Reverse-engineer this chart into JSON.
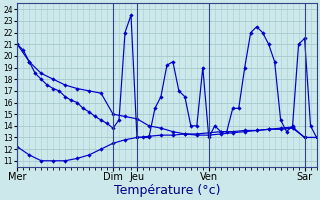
{
  "background_color": "#cce8ea",
  "grid_color": "#aaccd0",
  "line_color": "#0000cc",
  "xlabel": "Température (°c)",
  "xlabel_fontsize": 9,
  "yticks": [
    11,
    12,
    13,
    14,
    15,
    16,
    17,
    18,
    19,
    20,
    21,
    22,
    23,
    24
  ],
  "ylim": [
    10.5,
    24.5
  ],
  "xlim": [
    0,
    100
  ],
  "day_labels": [
    "Mer",
    "Dim",
    "Jeu",
    "Ven",
    "Sar"
  ],
  "day_positions": [
    0,
    32,
    40,
    64,
    96
  ],
  "series_main_x": [
    0,
    2,
    4,
    6,
    8,
    10,
    12,
    14,
    16,
    18,
    20,
    22,
    24,
    26,
    28,
    30,
    32,
    34,
    36,
    38,
    40,
    42,
    44,
    46,
    48,
    50,
    52,
    54,
    56,
    58,
    60,
    62,
    64,
    66,
    68,
    70,
    72,
    74,
    76,
    78,
    80,
    82,
    84,
    86,
    88,
    90,
    92,
    94,
    96,
    98,
    100
  ],
  "series_main_y": [
    21.0,
    20.5,
    19.5,
    18.5,
    18.0,
    17.5,
    17.2,
    17.0,
    16.5,
    16.2,
    16.0,
    15.5,
    15.2,
    14.8,
    14.5,
    14.2,
    13.8,
    14.5,
    22.0,
    23.5,
    13.0,
    13.0,
    13.0,
    15.5,
    16.5,
    19.2,
    19.5,
    17.0,
    16.5,
    14.0,
    14.0,
    19.0,
    13.0,
    14.0,
    13.5,
    13.5,
    15.5,
    15.5,
    19.0,
    22.0,
    22.5,
    22.0,
    21.0,
    19.5,
    14.5,
    13.5,
    14.0,
    21.0,
    21.5,
    14.0,
    13.0
  ],
  "series_upper_x": [
    0,
    4,
    8,
    12,
    16,
    20,
    24,
    28,
    32,
    36,
    40,
    44,
    48,
    52,
    56,
    60,
    64,
    68,
    72,
    76,
    80,
    84,
    88,
    92,
    96,
    100
  ],
  "series_upper_y": [
    21.0,
    19.5,
    18.5,
    18.0,
    17.5,
    17.2,
    17.0,
    16.8,
    15.0,
    14.8,
    14.6,
    14.0,
    13.8,
    13.5,
    13.3,
    13.2,
    13.2,
    13.3,
    13.4,
    13.5,
    13.6,
    13.7,
    13.8,
    13.9,
    13.0,
    13.0
  ],
  "series_lower_x": [
    0,
    4,
    8,
    12,
    16,
    20,
    24,
    28,
    32,
    36,
    40,
    44,
    48,
    52,
    56,
    60,
    64,
    68,
    72,
    76,
    80,
    84,
    88,
    92,
    96,
    100
  ],
  "series_lower_y": [
    12.2,
    11.5,
    11.0,
    11.0,
    11.0,
    11.2,
    11.5,
    12.0,
    12.5,
    12.8,
    13.0,
    13.1,
    13.2,
    13.2,
    13.3,
    13.3,
    13.4,
    13.5,
    13.5,
    13.6,
    13.6,
    13.7,
    13.7,
    13.8,
    13.0,
    13.0
  ]
}
